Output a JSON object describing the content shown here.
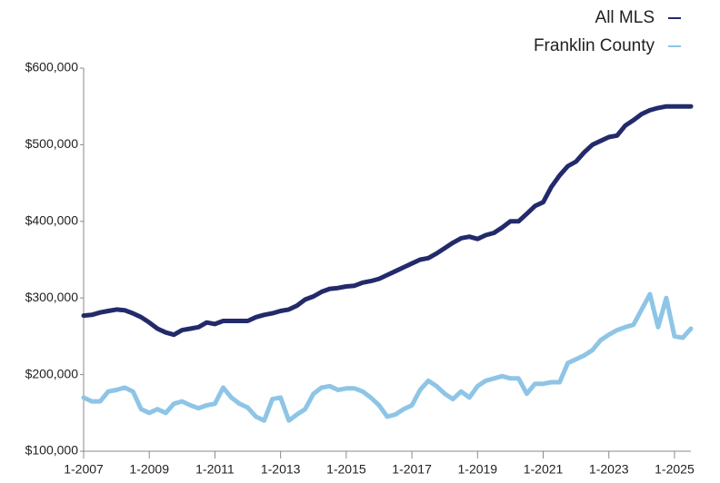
{
  "chart_data": {
    "type": "line",
    "x": [
      "1-2007",
      "4-2007",
      "7-2007",
      "10-2007",
      "1-2008",
      "4-2008",
      "7-2008",
      "10-2008",
      "1-2009",
      "4-2009",
      "7-2009",
      "10-2009",
      "1-2010",
      "4-2010",
      "7-2010",
      "10-2010",
      "1-2011",
      "4-2011",
      "7-2011",
      "10-2011",
      "1-2012",
      "4-2012",
      "7-2012",
      "10-2012",
      "1-2013",
      "4-2013",
      "7-2013",
      "10-2013",
      "1-2014",
      "4-2014",
      "7-2014",
      "10-2014",
      "1-2015",
      "4-2015",
      "7-2015",
      "10-2015",
      "1-2016",
      "4-2016",
      "7-2016",
      "10-2016",
      "1-2017",
      "4-2017",
      "7-2017",
      "10-2017",
      "1-2018",
      "4-2018",
      "7-2018",
      "10-2018",
      "1-2019",
      "4-2019",
      "7-2019",
      "10-2019",
      "1-2020",
      "4-2020",
      "7-2020",
      "10-2020",
      "1-2021",
      "4-2021",
      "7-2021",
      "10-2021",
      "1-2022",
      "4-2022",
      "7-2022",
      "10-2022",
      "1-2023",
      "4-2023",
      "7-2023",
      "10-2023",
      "1-2024",
      "4-2024",
      "7-2024",
      "10-2024",
      "1-2025",
      "4-2025",
      "7-2025"
    ],
    "series": [
      {
        "name": "All MLS",
        "color": "#232a6b",
        "values": [
          277000,
          278000,
          281000,
          283000,
          285000,
          284000,
          280000,
          275000,
          268000,
          260000,
          255000,
          252000,
          258000,
          260000,
          262000,
          268000,
          266000,
          270000,
          270000,
          270000,
          270000,
          275000,
          278000,
          280000,
          283000,
          285000,
          290000,
          298000,
          302000,
          308000,
          312000,
          313000,
          315000,
          316000,
          320000,
          322000,
          325000,
          330000,
          335000,
          340000,
          345000,
          350000,
          352000,
          358000,
          365000,
          372000,
          378000,
          380000,
          377000,
          382000,
          385000,
          392000,
          400000,
          400000,
          410000,
          420000,
          425000,
          445000,
          460000,
          472000,
          478000,
          490000,
          500000,
          505000,
          510000,
          512000,
          525000,
          532000,
          540000,
          545000,
          548000,
          550000,
          550000,
          550000,
          550000
        ]
      },
      {
        "name": "Franklin County",
        "color": "#8ec5e6",
        "values": [
          170000,
          165000,
          165000,
          178000,
          180000,
          183000,
          178000,
          155000,
          150000,
          155000,
          150000,
          162000,
          165000,
          160000,
          156000,
          160000,
          162000,
          183000,
          170000,
          162000,
          157000,
          145000,
          140000,
          168000,
          170000,
          140000,
          148000,
          155000,
          175000,
          183000,
          185000,
          180000,
          182000,
          182000,
          178000,
          170000,
          160000,
          145000,
          148000,
          155000,
          160000,
          180000,
          192000,
          185000,
          175000,
          168000,
          178000,
          170000,
          185000,
          192000,
          195000,
          198000,
          195000,
          195000,
          175000,
          188000,
          188000,
          190000,
          190000,
          215000,
          220000,
          225000,
          232000,
          245000,
          252000,
          258000,
          262000,
          265000,
          285000,
          305000,
          262000,
          300000,
          250000,
          248000,
          260000
        ]
      }
    ],
    "xlim": [
      "1-2007",
      "7-2025"
    ],
    "xticks": [
      "1-2007",
      "1-2009",
      "1-2011",
      "1-2013",
      "1-2015",
      "1-2017",
      "1-2019",
      "1-2021",
      "1-2023",
      "1-2025"
    ],
    "ylim": [
      100000,
      600000
    ],
    "yticks": [
      {
        "value": 100000,
        "label": "$100,000"
      },
      {
        "value": 200000,
        "label": "$200,000"
      },
      {
        "value": 300000,
        "label": "$300,000"
      },
      {
        "value": 400000,
        "label": "$400,000"
      },
      {
        "value": 500000,
        "label": "$500,000"
      },
      {
        "value": 600000,
        "label": "$600,000"
      }
    ],
    "legend": "top-right"
  }
}
